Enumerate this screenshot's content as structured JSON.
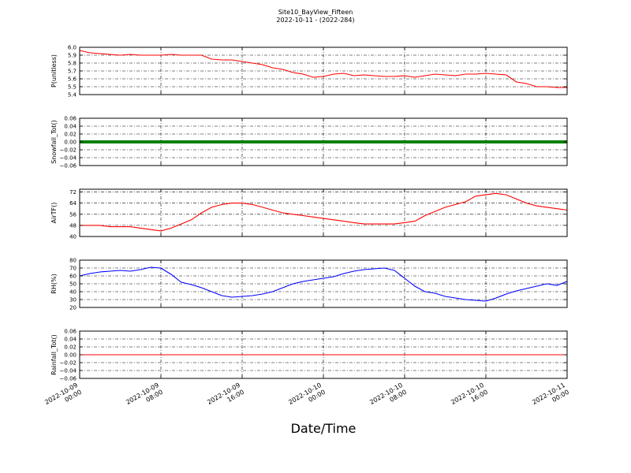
{
  "chart_title": "Site10_BayView_Fifteen",
  "chart_subtitle": "2022-10-11 - (2022-284)",
  "x_axis_label": "Date/Time",
  "x_tick_labels": [
    [
      "2022-10-09",
      "00:00"
    ],
    [
      "2022-10-09",
      "08:00"
    ],
    [
      "2022-10-09",
      "16:00"
    ],
    [
      "2022-10-10",
      "00:00"
    ],
    [
      "2022-10-10",
      "08:00"
    ],
    [
      "2022-10-10",
      "16:00"
    ],
    [
      "2022-10-11",
      "00:00"
    ]
  ],
  "chart_data": [
    {
      "type": "line",
      "ylabel": "P(unitless)",
      "color": "#ff0000",
      "ylim": [
        5.4,
        6.0
      ],
      "yticks": [
        "6.0",
        "5.9",
        "5.8",
        "5.7",
        "5.6",
        "5.5",
        "5.4"
      ],
      "ytick_values": [
        6.0,
        5.9,
        5.8,
        5.7,
        5.6,
        5.5,
        5.4
      ],
      "x_hours": [
        0,
        1,
        2,
        3,
        4,
        5,
        6,
        7,
        8,
        9,
        10,
        11,
        12,
        13,
        14,
        15,
        16,
        17,
        18,
        19,
        20,
        21,
        22,
        23,
        24,
        25,
        26,
        27,
        28,
        29,
        30,
        31,
        32,
        33,
        34,
        35,
        36,
        37,
        38,
        39,
        40,
        41,
        42,
        43,
        44,
        45,
        46,
        47,
        48
      ],
      "values": [
        5.96,
        5.93,
        5.92,
        5.91,
        5.9,
        5.91,
        5.9,
        5.9,
        5.9,
        5.91,
        5.9,
        5.9,
        5.9,
        5.85,
        5.84,
        5.84,
        5.82,
        5.8,
        5.78,
        5.74,
        5.72,
        5.68,
        5.66,
        5.62,
        5.63,
        5.66,
        5.67,
        5.64,
        5.65,
        5.64,
        5.63,
        5.63,
        5.64,
        5.62,
        5.64,
        5.66,
        5.65,
        5.64,
        5.66,
        5.66,
        5.67,
        5.66,
        5.65,
        5.56,
        5.54,
        5.5,
        5.5,
        5.49,
        5.49
      ]
    },
    {
      "type": "line",
      "ylabel": "Snowfall_Tot()",
      "color": "#008000",
      "ylim": [
        -0.06,
        0.06
      ],
      "yticks": [
        "0.06",
        "0.04",
        "0.02",
        "0.00",
        "−0.02",
        "−0.04",
        "−0.06"
      ],
      "ytick_values": [
        0.06,
        0.04,
        0.02,
        0.0,
        -0.02,
        -0.04,
        -0.06
      ],
      "x_hours": [
        0,
        48
      ],
      "values": [
        0.0,
        0.0
      ]
    },
    {
      "type": "line",
      "ylabel": "AirTF()",
      "color": "#ff0000",
      "ylim": [
        40,
        74
      ],
      "yticks": [
        "72",
        "64",
        "56",
        "48",
        "40"
      ],
      "ytick_values": [
        72,
        64,
        56,
        48,
        40
      ],
      "x_hours": [
        0,
        1,
        2,
        3,
        4,
        5,
        6,
        7,
        8,
        9,
        10,
        11,
        12,
        13,
        14,
        15,
        16,
        17,
        18,
        19,
        20,
        21,
        22,
        23,
        24,
        25,
        26,
        27,
        28,
        29,
        30,
        31,
        32,
        33,
        34,
        35,
        36,
        37,
        38,
        39,
        40,
        41,
        42,
        43,
        44,
        45,
        46,
        47,
        48
      ],
      "values": [
        48,
        48,
        48,
        47,
        47,
        47,
        46,
        45,
        44,
        46,
        49,
        52,
        57,
        61,
        63,
        64,
        64,
        63,
        61,
        59,
        57,
        56,
        55,
        54,
        53,
        52,
        51,
        50,
        49,
        49,
        49,
        49,
        50,
        51,
        55,
        58,
        61,
        63,
        65,
        69,
        70,
        71,
        70,
        67,
        64,
        62,
        61,
        60,
        59
      ]
    },
    {
      "type": "line",
      "ylabel": "RH(%)",
      "color": "#0000ff",
      "ylim": [
        20,
        80
      ],
      "yticks": [
        "80",
        "70",
        "60",
        "50",
        "40",
        "30",
        "20"
      ],
      "ytick_values": [
        80,
        70,
        60,
        50,
        40,
        30,
        20
      ],
      "x_hours": [
        0,
        1,
        2,
        3,
        4,
        5,
        6,
        7,
        8,
        9,
        10,
        11,
        12,
        13,
        14,
        15,
        16,
        17,
        18,
        19,
        20,
        21,
        22,
        23,
        24,
        25,
        26,
        27,
        28,
        29,
        30,
        31,
        32,
        33,
        34,
        35,
        36,
        37,
        38,
        39,
        40,
        41,
        42,
        43,
        44,
        45,
        46,
        47,
        48
      ],
      "values": [
        60,
        63,
        65,
        66,
        67,
        66,
        68,
        71,
        70,
        62,
        52,
        49,
        45,
        40,
        35,
        33,
        34,
        35,
        37,
        40,
        45,
        50,
        53,
        55,
        57,
        59,
        63,
        66,
        68,
        69,
        70,
        67,
        57,
        47,
        40,
        38,
        34,
        32,
        30,
        29,
        28,
        32,
        37,
        41,
        44,
        47,
        50,
        48,
        53
      ]
    },
    {
      "type": "line",
      "ylabel": "Rainfall_Tot()",
      "color": "#ff0000",
      "ylim": [
        -0.06,
        0.06
      ],
      "yticks": [
        "0.06",
        "0.04",
        "0.02",
        "0.00",
        "−0.02",
        "−0.04",
        "−0.06"
      ],
      "ytick_values": [
        0.06,
        0.04,
        0.02,
        0.0,
        -0.02,
        -0.04,
        -0.06
      ],
      "x_hours": [
        0,
        48
      ],
      "values": [
        0.0,
        0.0
      ]
    }
  ]
}
